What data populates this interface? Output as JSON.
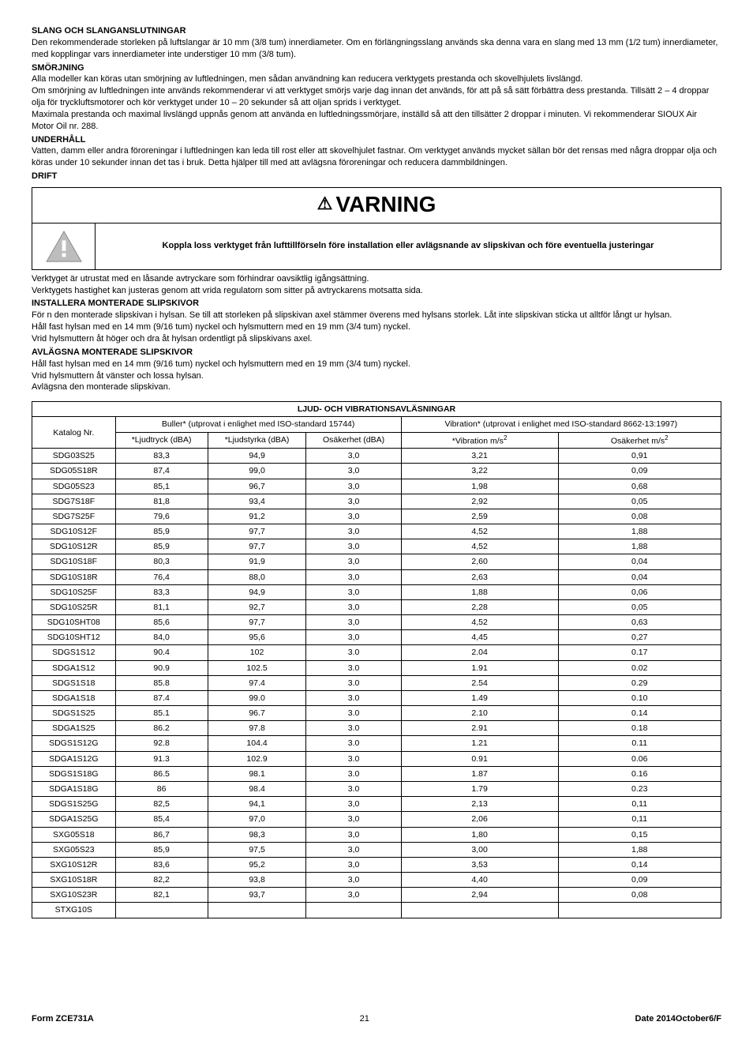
{
  "sections": {
    "slang": {
      "heading": "SLANG OCH SLANGANSLUTNINGAR",
      "p1": "Den rekommenderade storleken på luftslangar är 10 mm (3/8 tum) innerdiameter. Om en förlängningsslang används ska denna vara en slang med 13 mm (1/2 tum) innerdiameter, med kopplingar vars innerdiameter inte understiger 10 mm (3/8 tum)."
    },
    "smorjning": {
      "heading": "SMÖRJNING",
      "p1": "Alla modeller kan köras utan smörjning av luftledningen, men sådan användning kan reducera verktygets prestanda och skovelhjulets livslängd.",
      "p2": "Om smörjning av luftledningen inte används rekommenderar vi att verktyget smörjs varje dag innan det används, för att på så sätt förbättra dess prestanda. Tillsätt 2 – 4 droppar olja för tryckluftsmotorer och kör verktyget under 10 – 20 sekunder så att oljan sprids i verktyget.",
      "p3": "Maximala prestanda och maximal livslängd uppnås genom att använda en luftledningssmörjare, inställd så att den tillsätter 2 droppar i minuten. Vi rekommenderar SIOUX Air Motor Oil nr. 288."
    },
    "underhall": {
      "heading": "UNDERHÅLL",
      "p1": "Vatten, damm eller andra föroreningar i luftledningen kan leda till rost eller att skovelhjulet fastnar. Om verktyget används mycket sällan bör det rensas med några droppar olja och köras under 10 sekunder innan det tas i bruk. Detta hjälper till med att avlägsna föroreningar och reducera dammbildningen."
    },
    "drift": {
      "heading": "DRIFT"
    },
    "warning": {
      "title": "VARNING",
      "text": "Koppla loss verktyget från lufttillförseln före installation eller avlägsnande av slipskivan och före eventuella justeringar"
    },
    "after_warning": {
      "p1": "Verktyget är utrustat med en låsande avtryckare som förhindrar oavsiktlig igångsättning.",
      "p2": "Verktygets hastighet kan justeras genom att vrida regulatorn som sitter på avtryckarens motsatta sida."
    },
    "installera": {
      "heading": "INSTALLERA MONTERADE SLIPSKIVOR",
      "p1": "För n den monterade slipskivan i hylsan. Se till att storleken på slipskivan axel stämmer överens med hylsans storlek. Låt inte slipskivan sticka ut alltför långt ur hylsan.",
      "p2": "Håll fast hylsan med en 14 mm (9/16 tum) nyckel och hylsmuttern med en 19 mm (3/4 tum) nyckel.",
      "p3": "Vrid hylsmuttern åt höger och dra åt hylsan ordentligt på slipskivans axel."
    },
    "avlagsna": {
      "heading": "AVLÄGSNA MONTERADE SLIPSKIVOR",
      "p1": "Håll fast hylsan med en 14 mm (9/16 tum) nyckel och hylsmuttern med en 19 mm (3/4 tum) nyckel.",
      "p2": "Vrid hylsmuttern åt vänster och lossa hylsan.",
      "p3": "Avlägsna den monterade slipskivan."
    }
  },
  "table": {
    "title": "LJUD- OCH VIBRATIONSAVLÄSNINGAR",
    "h_catalog": "Katalog Nr.",
    "h_noise": "Buller* (utprovat i enlighet med ISO-standard 15744)",
    "h_vibration": "Vibration* (utprovat i enlighet med ISO-standard 8662-13:1997)",
    "h_pressure": "*Ljudtryck (dBA)",
    "h_power": "*Ljudstyrka (dBA)",
    "h_unc1": "Osäkerhet (dBA)",
    "h_vib": "*Vibration m/s",
    "h_unc2": "Osäkerhet  m/s",
    "rows": [
      [
        "SDG03S25",
        "83,3",
        "94,9",
        "3,0",
        "3,21",
        "0,91"
      ],
      [
        "SDG05S18R",
        "87,4",
        "99,0",
        "3,0",
        "3,22",
        "0,09"
      ],
      [
        "SDG05S23",
        "85,1",
        "96,7",
        "3,0",
        "1,98",
        "0,68"
      ],
      [
        "SDG7S18F",
        "81,8",
        "93,4",
        "3,0",
        "2,92",
        "0,05"
      ],
      [
        "SDG7S25F",
        "79,6",
        "91,2",
        "3,0",
        "2,59",
        "0,08"
      ],
      [
        "SDG10S12F",
        "85,9",
        "97,7",
        "3,0",
        "4,52",
        "1,88"
      ],
      [
        "SDG10S12R",
        "85,9",
        "97,7",
        "3,0",
        "4,52",
        "1,88"
      ],
      [
        "SDG10S18F",
        "80,3",
        "91,9",
        "3,0",
        "2,60",
        "0,04"
      ],
      [
        "SDG10S18R",
        "76,4",
        "88,0",
        "3,0",
        "2,63",
        "0,04"
      ],
      [
        "SDG10S25F",
        "83,3",
        "94,9",
        "3,0",
        "1,88",
        "0,06"
      ],
      [
        "SDG10S25R",
        "81,1",
        "92,7",
        "3,0",
        "2,28",
        "0,05"
      ],
      [
        "SDG10SHT08",
        "85,6",
        "97,7",
        "3,0",
        "4,52",
        "0,63"
      ],
      [
        "SDG10SHT12",
        "84,0",
        "95,6",
        "3,0",
        "4,45",
        "0,27"
      ],
      [
        "SDGS1S12",
        "90.4",
        "102",
        "3.0",
        "2.04",
        "0.17"
      ],
      [
        "SDGA1S12",
        "90.9",
        "102.5",
        "3.0",
        "1.91",
        "0.02"
      ],
      [
        "SDGS1S18",
        "85.8",
        "97.4",
        "3.0",
        "2.54",
        "0.29"
      ],
      [
        "SDGA1S18",
        "87.4",
        "99.0",
        "3.0",
        "1.49",
        "0.10"
      ],
      [
        "SDGS1S25",
        "85.1",
        "96.7",
        "3.0",
        "2.10",
        "0.14"
      ],
      [
        "SDGA1S25",
        "86.2",
        "97.8",
        "3.0",
        "2.91",
        "0.18"
      ],
      [
        "SDGS1S12G",
        "92.8",
        "104.4",
        "3.0",
        "1.21",
        "0.11"
      ],
      [
        "SDGA1S12G",
        "91.3",
        "102.9",
        "3.0",
        "0.91",
        "0.06"
      ],
      [
        "SDGS1S18G",
        "86.5",
        "98.1",
        "3.0",
        "1.87",
        "0.16"
      ],
      [
        "SDGA1S18G",
        "86",
        "98.4",
        "3.0",
        "1.79",
        "0.23"
      ],
      [
        "SDGS1S25G",
        "82,5",
        "94,1",
        "3,0",
        "2,13",
        "0,11"
      ],
      [
        "SDGA1S25G",
        "85,4",
        "97,0",
        "3,0",
        "2,06",
        "0,11"
      ],
      [
        "SXG05S18",
        "86,7",
        "98,3",
        "3,0",
        "1,80",
        "0,15"
      ],
      [
        "SXG05S23",
        "85,9",
        "97,5",
        "3,0",
        "3,00",
        "1,88"
      ],
      [
        "SXG10S12R",
        "83,6",
        "95,2",
        "3,0",
        "3,53",
        "0,14"
      ],
      [
        "SXG10S18R",
        "82,2",
        "93,8",
        "3,0",
        "4,40",
        "0,09"
      ],
      [
        "SXG10S23R",
        "82,1",
        "93,7",
        "3,0",
        "2,94",
        "0,08"
      ],
      [
        "STXG10S",
        "",
        "",
        "",
        "",
        ""
      ]
    ]
  },
  "footer": {
    "form": "Form ZCE731A",
    "page": "21",
    "date": "Date 2014October6/F"
  }
}
